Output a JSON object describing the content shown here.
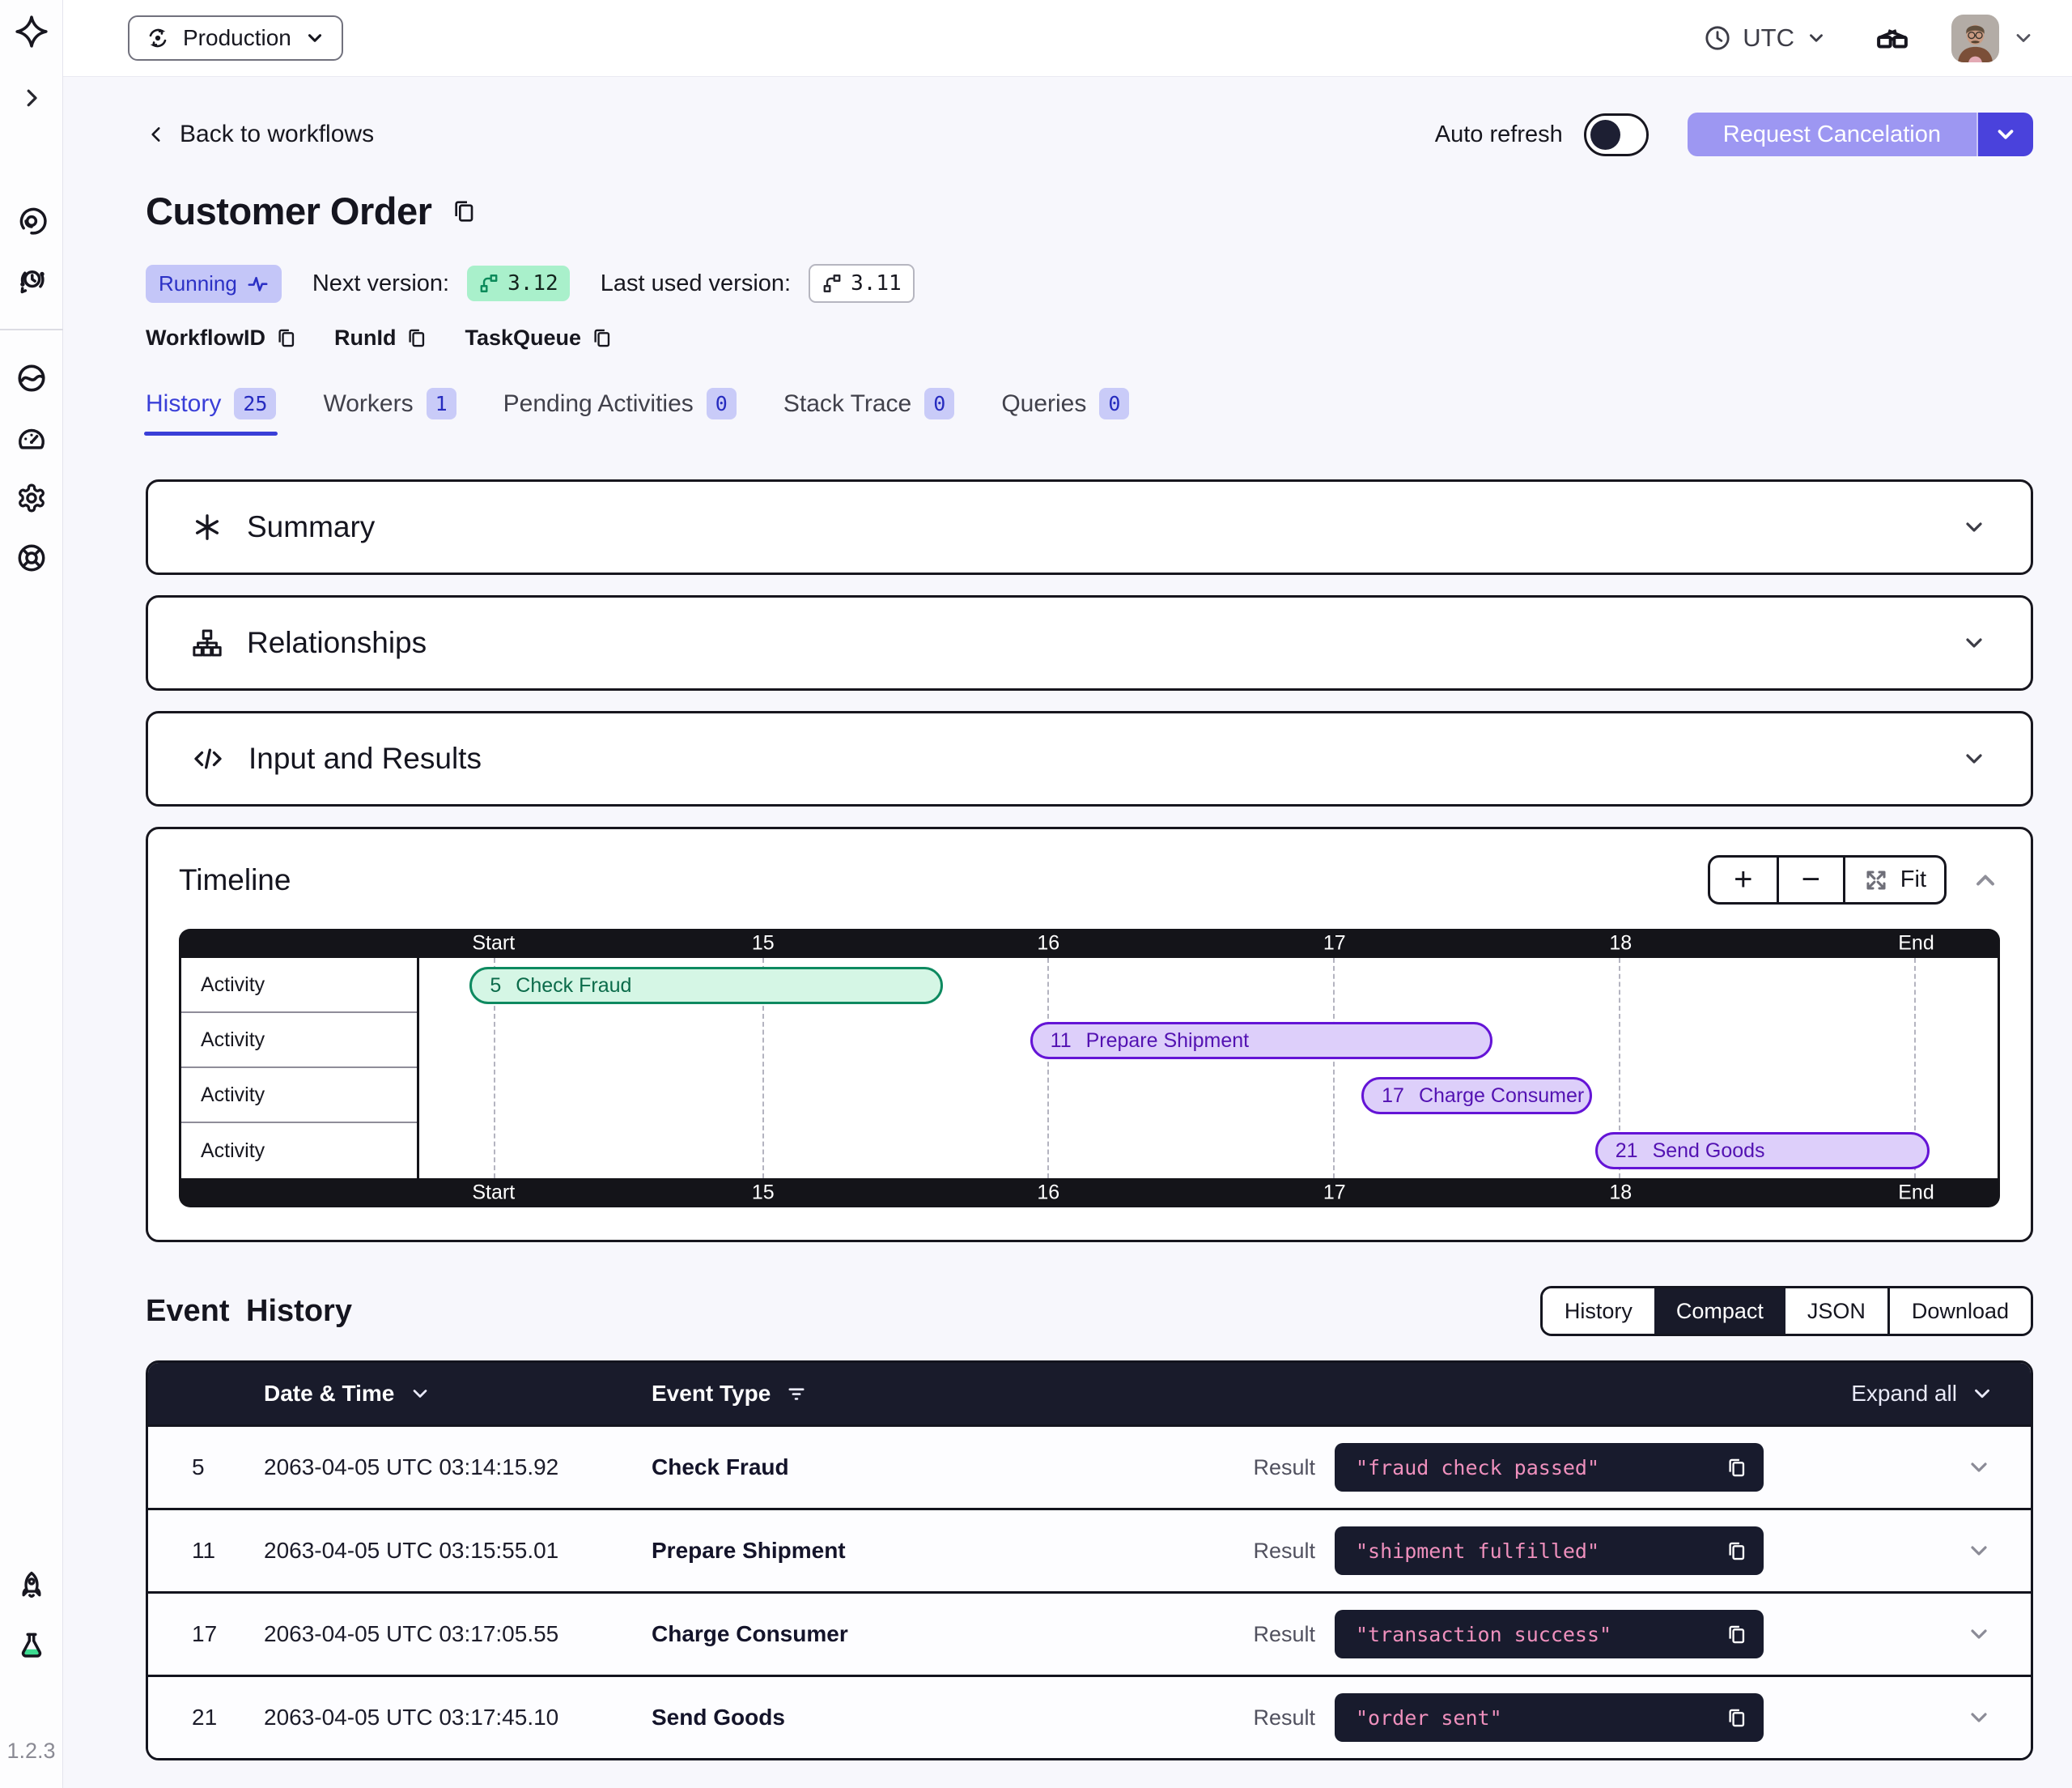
{
  "topbar": {
    "namespace": "Production",
    "timezone": "UTC"
  },
  "sidebar": {
    "version": "1.2.3"
  },
  "workflow": {
    "back_label": "Back to workflows",
    "title": "Customer Order",
    "status": "Running",
    "next_version_label": "Next version:",
    "next_version": "3.12",
    "last_used_label": "Last used version:",
    "last_used_version": "3.11",
    "id_links": [
      "WorkflowID",
      "RunId",
      "TaskQueue"
    ],
    "auto_refresh_label": "Auto refresh",
    "cancel_label": "Request Cancelation"
  },
  "tabs": [
    {
      "label": "History",
      "count": "25",
      "active": true
    },
    {
      "label": "Workers",
      "count": "1",
      "active": false
    },
    {
      "label": "Pending Activities",
      "count": "0",
      "active": false
    },
    {
      "label": "Stack Trace",
      "count": "0",
      "active": false
    },
    {
      "label": "Queries",
      "count": "0",
      "active": false
    }
  ],
  "sections": [
    {
      "icon": "asterisk-icon",
      "title": "Summary"
    },
    {
      "icon": "sitemap-icon",
      "title": "Relationships"
    },
    {
      "icon": "code-icon",
      "title": "Input and Results"
    }
  ],
  "timeline": {
    "title": "Timeline",
    "zoom_in_label": "+",
    "zoom_out_label": "−",
    "fit_label": "Fit",
    "row_label": "Activity",
    "row_count": 4,
    "ticks": [
      {
        "label": "Start",
        "pct": 4.7
      },
      {
        "label": "15",
        "pct": 21.75
      },
      {
        "label": "16",
        "pct": 39.8
      },
      {
        "label": "17",
        "pct": 57.9
      },
      {
        "label": "18",
        "pct": 76.0
      },
      {
        "label": "End",
        "pct": 94.7
      }
    ],
    "bars": [
      {
        "id": "5",
        "label": "Check Fraud",
        "row": 0,
        "left_pct": 3.2,
        "width_pct": 30.0,
        "color": "green"
      },
      {
        "id": "11",
        "label": "Prepare Shipment",
        "row": 1,
        "left_pct": 38.7,
        "width_pct": 29.3,
        "color": "purple"
      },
      {
        "id": "17",
        "label": "Charge Consumer",
        "row": 2,
        "left_pct": 59.7,
        "width_pct": 14.6,
        "color": "purple"
      },
      {
        "id": "21",
        "label": "Send Goods",
        "row": 3,
        "left_pct": 74.5,
        "width_pct": 21.2,
        "color": "purple"
      }
    ]
  },
  "event_history": {
    "title": "Event History",
    "view_modes": [
      {
        "label": "History",
        "active": false
      },
      {
        "label": "Compact",
        "active": true
      },
      {
        "label": "JSON",
        "active": false
      },
      {
        "label": "Download",
        "active": false
      }
    ],
    "columns": {
      "datetime": "Date & Time",
      "event_type": "Event Type"
    },
    "expand_all_label": "Expand all",
    "result_label": "Result",
    "rows": [
      {
        "id": "5",
        "datetime": "2063-04-05 UTC 03:14:15.92",
        "event_type": "Check Fraud",
        "result": "\"fraud check passed\""
      },
      {
        "id": "11",
        "datetime": "2063-04-05 UTC 03:15:55.01",
        "event_type": "Prepare Shipment",
        "result": "\"shipment fulfilled\""
      },
      {
        "id": "17",
        "datetime": "2063-04-05 UTC 03:17:05.55",
        "event_type": "Charge Consumer",
        "result": "\"transaction success\""
      },
      {
        "id": "21",
        "datetime": "2063-04-05 UTC 03:17:45.10",
        "event_type": "Send Goods",
        "result": "\"order sent\""
      }
    ]
  },
  "colors": {
    "accent_indigo": "#3a3fd8",
    "running_badge_bg": "#c4c6f8",
    "version_badge_green": "#a9f0cb",
    "bar_green_fill": "#d5f6e5",
    "bar_green_border": "#0e8a60",
    "bar_purple_fill": "#ddcffa",
    "bar_purple_border": "#6414d6",
    "dark_axis": "#141419",
    "table_header_navy": "#191b2b",
    "code_text_pink": "#ef90bd",
    "cancel_button_bg": "#9d97f2",
    "cancel_caret_bg": "#4a42dc"
  }
}
